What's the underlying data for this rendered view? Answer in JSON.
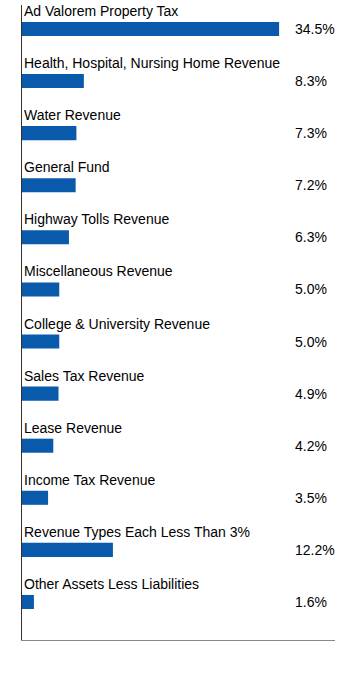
{
  "chart_data": {
    "type": "bar",
    "orientation": "horizontal",
    "categories": [
      "Ad Valorem Property Tax",
      "Health, Hospital, Nursing Home Revenue",
      "Water Revenue",
      "General Fund",
      "Highway Tolls Revenue",
      "Miscellaneous Revenue",
      "College & University Revenue",
      "Sales Tax Revenue",
      "Lease Revenue",
      "Income Tax Revenue",
      "Revenue Types Each Less Than 3%",
      "Other Assets Less Liabilities"
    ],
    "values": [
      34.5,
      8.3,
      7.3,
      7.2,
      6.3,
      5.0,
      5.0,
      4.9,
      4.2,
      3.5,
      12.2,
      1.6
    ],
    "value_labels": [
      "34.5%",
      "8.3%",
      "7.3%",
      "7.2%",
      "6.3%",
      "5.0%",
      "5.0%",
      "4.9%",
      "4.2%",
      "3.5%",
      "12.2%",
      "1.6%"
    ],
    "data_labels": true,
    "color": "#0a5aab",
    "xlim": [
      0,
      42
    ],
    "xticks": [],
    "grid": false,
    "tick_labels": false
  }
}
